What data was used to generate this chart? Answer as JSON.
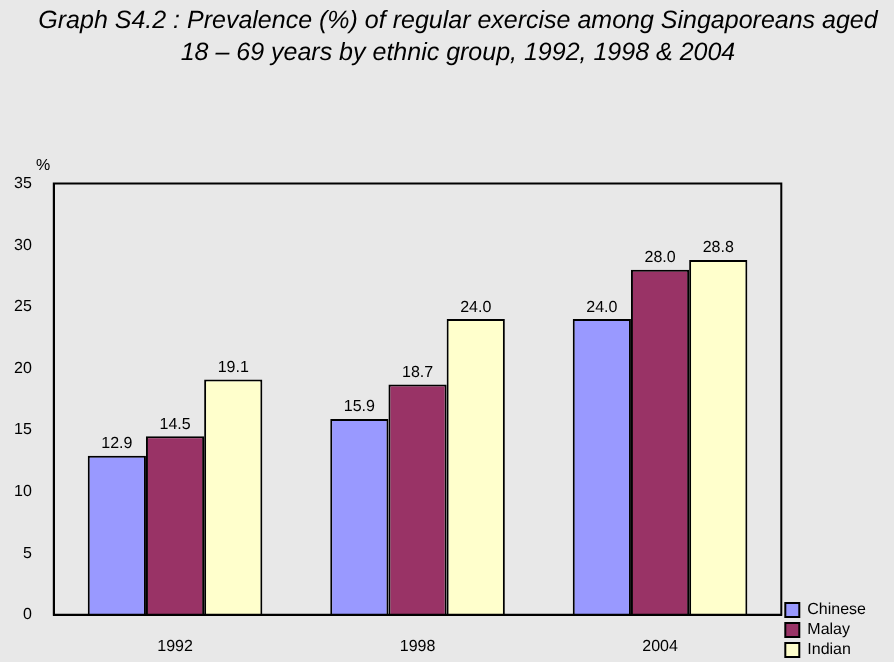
{
  "chart_data": {
    "type": "bar",
    "title": "Graph S4.2 : Prevalence (%) of regular exercise among Singaporeans aged 18 – 69 years by ethnic group, 1992, 1998 & 2004",
    "ylabel": "%",
    "categories": [
      "1992",
      "1998",
      "2004"
    ],
    "series": [
      {
        "name": "Chinese",
        "color": "#9999ff",
        "values": [
          12.9,
          15.9,
          24.0
        ],
        "value_labels": [
          "12.9",
          "15.9",
          "24.0"
        ]
      },
      {
        "name": "Malay",
        "color": "#993366",
        "values": [
          14.5,
          18.7,
          28.0
        ],
        "value_labels": [
          "14.5",
          "18.7",
          "28.0"
        ]
      },
      {
        "name": "Indian",
        "color": "#ffffcc",
        "values": [
          19.1,
          24.0,
          28.8
        ],
        "value_labels": [
          "19.1",
          "24.0",
          "28.8"
        ]
      }
    ],
    "ylim": [
      0,
      35
    ],
    "yticks": [
      0,
      5,
      10,
      15,
      20,
      25,
      30,
      35
    ],
    "grid": false,
    "legend": "bottom right"
  }
}
